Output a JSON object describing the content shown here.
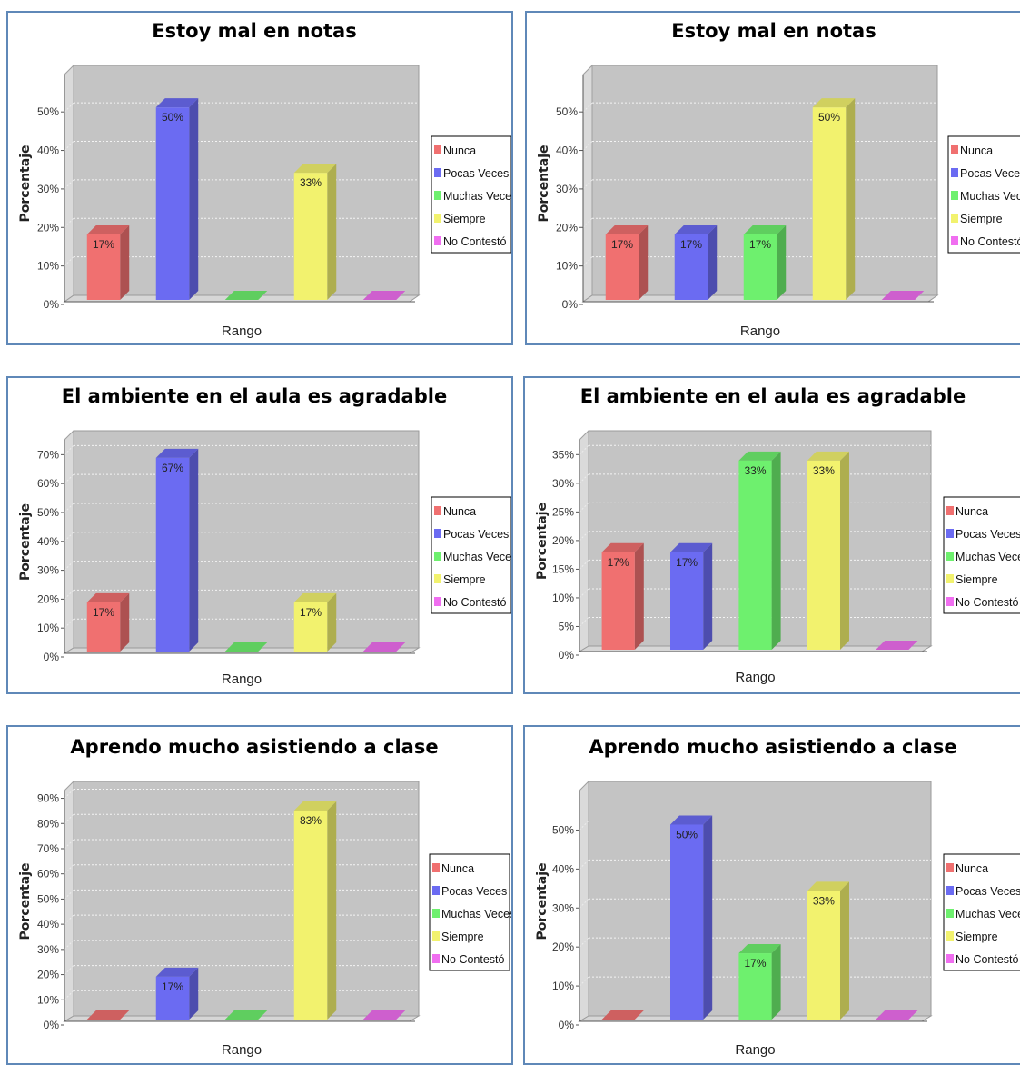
{
  "colors": {
    "Nunca": "#f07070",
    "Pocas Veces": "#6b6bf2",
    "Muchas Veces": "#6ef06e",
    "Siempre": "#f2f26e",
    "No Contestó": "#f06ef0"
  },
  "chart_data": [
    {
      "type": "bar",
      "title": "Estoy mal en notas",
      "xlabel": "Rango",
      "ylabel": "Porcentaje",
      "categories": [
        "Nunca",
        "Pocas Veces",
        "Muchas Veces",
        "Siempre",
        "No Contestó"
      ],
      "values": [
        17,
        50,
        0,
        33,
        0
      ],
      "value_labels": [
        "17%",
        "50%",
        "",
        "33%",
        ""
      ],
      "ylim": [
        0,
        55
      ],
      "yticks": [
        0,
        10,
        20,
        30,
        40,
        50
      ],
      "tick_labels": [
        "0%",
        "10%",
        "20%",
        "30%",
        "40%",
        "50%"
      ],
      "legend": [
        "Nunca",
        "Pocas Veces",
        "Muchas Veces",
        "Siempre",
        "No Contestó"
      ],
      "legend_position": "right",
      "grid": true
    },
    {
      "type": "bar",
      "title": "Estoy mal en notas",
      "xlabel": "Rango",
      "ylabel": "Porcentaje",
      "categories": [
        "Nunca",
        "Pocas Veces",
        "Muchas Veces",
        "Siempre",
        "No Contestó"
      ],
      "values": [
        17,
        17,
        17,
        50,
        0
      ],
      "value_labels": [
        "17%",
        "17%",
        "17%",
        "50%",
        ""
      ],
      "ylim": [
        0,
        55
      ],
      "yticks": [
        0,
        10,
        20,
        30,
        40,
        50
      ],
      "tick_labels": [
        "0%",
        "10%",
        "20%",
        "30%",
        "40%",
        "50%"
      ],
      "legend": [
        "Nunca",
        "Pocas Veces",
        "Muchas Veces",
        "Siempre",
        "No Contestó"
      ],
      "legend_position": "right",
      "grid": true
    },
    {
      "type": "bar",
      "title": "El ambiente en el aula es agradable",
      "xlabel": "Rango",
      "ylabel": "Porcentaje",
      "categories": [
        "Nunca",
        "Pocas Veces",
        "Muchas Veces",
        "Siempre",
        "No Contestó"
      ],
      "values": [
        17,
        67,
        0,
        17,
        0
      ],
      "value_labels": [
        "17%",
        "67%",
        "",
        "17%",
        ""
      ],
      "ylim": [
        0,
        72
      ],
      "yticks": [
        0,
        10,
        20,
        30,
        40,
        50,
        60,
        70
      ],
      "tick_labels": [
        "0%",
        "10%",
        "20%",
        "30%",
        "40%",
        "50%",
        "60%",
        "70%"
      ],
      "legend": [
        "Nunca",
        "Pocas Veces",
        "Muchas Veces",
        "Siempre",
        "No Contestó"
      ],
      "legend_position": "right",
      "grid": true
    },
    {
      "type": "bar",
      "title": "El ambiente en el aula es agradable",
      "xlabel": "Rango",
      "ylabel": "Porcentaje",
      "categories": [
        "Nunca",
        "Pocas Veces",
        "Muchas Veces",
        "Siempre",
        "No Contestó"
      ],
      "values": [
        17,
        17,
        33,
        33,
        0
      ],
      "value_labels": [
        "17%",
        "17%",
        "33%",
        "33%",
        ""
      ],
      "ylim": [
        0,
        36
      ],
      "yticks": [
        0,
        5,
        10,
        15,
        20,
        25,
        30,
        35
      ],
      "tick_labels": [
        "0%",
        "5%",
        "10%",
        "15%",
        "20%",
        "25%",
        "30%",
        "35%"
      ],
      "legend": [
        "Nunca",
        "Pocas Veces",
        "Muchas Veces",
        "Siempre",
        "No Contestó"
      ],
      "legend_position": "right",
      "grid": true
    },
    {
      "type": "bar",
      "title": "Aprendo mucho asistiendo a clase",
      "xlabel": "Rango",
      "ylabel": "Porcentaje",
      "categories": [
        "Nunca",
        "Pocas Veces",
        "Muchas Veces",
        "Siempre",
        "No Contestó"
      ],
      "values": [
        0,
        17,
        0,
        83,
        0
      ],
      "value_labels": [
        "",
        "17%",
        "",
        "83%",
        ""
      ],
      "ylim": [
        0,
        92
      ],
      "yticks": [
        0,
        10,
        20,
        30,
        40,
        50,
        60,
        70,
        80,
        90
      ],
      "tick_labels": [
        "0%",
        "10%",
        "20%",
        "30%",
        "40%",
        "50%",
        "60%",
        "70%",
        "80%",
        "90%"
      ],
      "legend": [
        "Nunca",
        "Pocas Veces",
        "Muchas Veces",
        "Siempre",
        "No Contestó"
      ],
      "legend_position": "right",
      "grid": true
    },
    {
      "type": "bar",
      "title": "Aprendo mucho asistiendo a clase",
      "xlabel": "Rango",
      "ylabel": "Porcentaje",
      "categories": [
        "Nunca",
        "Pocas Veces",
        "Muchas Veces",
        "Siempre",
        "No Contestó"
      ],
      "values": [
        0,
        50,
        17,
        33,
        0
      ],
      "value_labels": [
        "",
        "50%",
        "17%",
        "33%",
        ""
      ],
      "ylim": [
        0,
        55
      ],
      "yticks": [
        0,
        10,
        20,
        30,
        40,
        50
      ],
      "tick_labels": [
        "0%",
        "10%",
        "20%",
        "30%",
        "40%",
        "50%"
      ],
      "legend": [
        "Nunca",
        "Pocas Veces",
        "Muchas Veces",
        "Siempre",
        "No Contestó"
      ],
      "legend_position": "right",
      "grid": true
    }
  ]
}
